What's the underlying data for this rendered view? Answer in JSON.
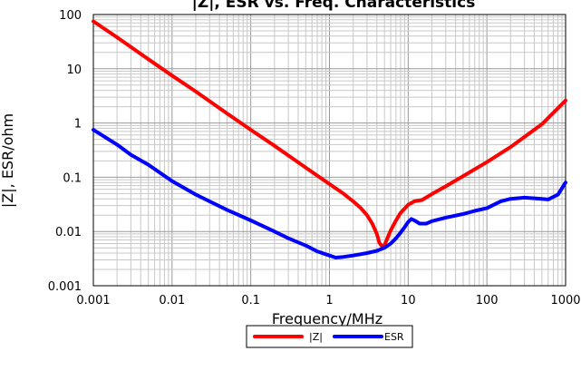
{
  "chart_data": {
    "type": "line",
    "title": "|Z|, ESR vs. Freq. Characteristics",
    "xlabel": "Frequency/MHz",
    "ylabel": "|Z|, ESR/ohm",
    "x_scale": "log",
    "y_scale": "log",
    "xlim": [
      0.001,
      1000
    ],
    "ylim": [
      0.001,
      100
    ],
    "x_tick_labels": [
      "0.001",
      "0.01",
      "0.1",
      "1",
      "10",
      "100",
      "1000"
    ],
    "y_tick_labels": [
      "0.001",
      "0.01",
      "0.1",
      "1",
      "10",
      "100"
    ],
    "grid": true,
    "legend_position": "bottom",
    "series": [
      {
        "name": "|Z|",
        "color": "#ff0000",
        "points": [
          [
            0.001,
            75
          ],
          [
            0.002,
            38
          ],
          [
            0.005,
            15
          ],
          [
            0.01,
            7.5
          ],
          [
            0.02,
            3.8
          ],
          [
            0.05,
            1.5
          ],
          [
            0.1,
            0.75
          ],
          [
            0.2,
            0.38
          ],
          [
            0.5,
            0.15
          ],
          [
            1,
            0.075
          ],
          [
            1.5,
            0.05
          ],
          [
            2,
            0.036
          ],
          [
            2.5,
            0.027
          ],
          [
            3,
            0.02
          ],
          [
            3.5,
            0.014
          ],
          [
            4,
            0.009
          ],
          [
            4.3,
            0.0062
          ],
          [
            4.7,
            0.0052
          ],
          [
            5,
            0.0056
          ],
          [
            5.5,
            0.0078
          ],
          [
            6,
            0.0105
          ],
          [
            7,
            0.016
          ],
          [
            8,
            0.022
          ],
          [
            10,
            0.031
          ],
          [
            12,
            0.036
          ],
          [
            15,
            0.038
          ],
          [
            20,
            0.049
          ],
          [
            30,
            0.068
          ],
          [
            50,
            0.105
          ],
          [
            100,
            0.19
          ],
          [
            200,
            0.36
          ],
          [
            500,
            0.95
          ],
          [
            1000,
            2.6
          ]
        ]
      },
      {
        "name": "ESR",
        "color": "#0000ff",
        "points": [
          [
            0.001,
            0.75
          ],
          [
            0.002,
            0.4
          ],
          [
            0.003,
            0.26
          ],
          [
            0.005,
            0.17
          ],
          [
            0.01,
            0.085
          ],
          [
            0.02,
            0.048
          ],
          [
            0.05,
            0.025
          ],
          [
            0.1,
            0.016
          ],
          [
            0.2,
            0.01
          ],
          [
            0.3,
            0.0075
          ],
          [
            0.5,
            0.0055
          ],
          [
            0.7,
            0.0043
          ],
          [
            1,
            0.0036
          ],
          [
            1.2,
            0.0033
          ],
          [
            1.5,
            0.0034
          ],
          [
            2,
            0.0036
          ],
          [
            3,
            0.004
          ],
          [
            4,
            0.0044
          ],
          [
            5,
            0.005
          ],
          [
            6,
            0.006
          ],
          [
            7,
            0.0075
          ],
          [
            8,
            0.0095
          ],
          [
            9,
            0.012
          ],
          [
            10,
            0.015
          ],
          [
            11,
            0.017
          ],
          [
            12,
            0.016
          ],
          [
            14,
            0.014
          ],
          [
            17,
            0.014
          ],
          [
            20,
            0.0155
          ],
          [
            30,
            0.018
          ],
          [
            50,
            0.021
          ],
          [
            70,
            0.024
          ],
          [
            100,
            0.027
          ],
          [
            150,
            0.036
          ],
          [
            200,
            0.04
          ],
          [
            300,
            0.042
          ],
          [
            400,
            0.041
          ],
          [
            500,
            0.04
          ],
          [
            600,
            0.039
          ],
          [
            800,
            0.048
          ],
          [
            1000,
            0.08
          ]
        ]
      }
    ]
  }
}
